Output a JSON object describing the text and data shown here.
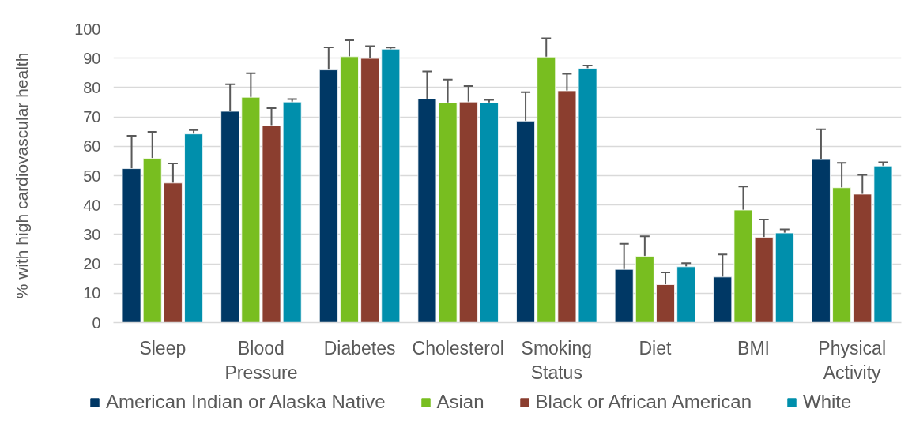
{
  "chart_data": {
    "type": "bar",
    "ylabel": "% with high cardiovascular health",
    "categories": [
      "Sleep",
      "Blood Pressure",
      "Diabetes",
      "Cholesterol",
      "Smoking Status",
      "Diet",
      "BMI",
      "Physical Activity"
    ],
    "series": [
      {
        "name": "American Indian or Alaska Native",
        "color": "#003865",
        "values": [
          52.4,
          71.9,
          86.0,
          76.1,
          68.6,
          18.1,
          15.5,
          55.5
        ],
        "errors": [
          11.2,
          9.2,
          7.7,
          9.4,
          9.8,
          8.7,
          7.7,
          10.3
        ]
      },
      {
        "name": "Asian",
        "color": "#78be20",
        "values": [
          55.9,
          76.7,
          90.5,
          74.8,
          90.4,
          22.6,
          38.3,
          45.9
        ],
        "errors": [
          9.0,
          8.2,
          5.6,
          7.9,
          6.4,
          6.8,
          8.0,
          8.5
        ]
      },
      {
        "name": "Black or African American",
        "color": "#8b3e2f",
        "values": [
          47.5,
          67.1,
          89.9,
          75.1,
          78.9,
          12.9,
          29.0,
          43.7
        ],
        "errors": [
          6.7,
          5.9,
          4.2,
          5.4,
          5.8,
          4.2,
          6.1,
          6.6
        ]
      },
      {
        "name": "White",
        "color": "#008fac",
        "values": [
          64.2,
          75.1,
          93.1,
          74.8,
          86.5,
          19.0,
          30.5,
          53.3
        ],
        "errors": [
          1.3,
          1.0,
          0.5,
          1.0,
          1.0,
          1.2,
          1.2,
          1.3
        ]
      }
    ],
    "ylim": [
      0,
      100
    ],
    "yticks": [
      0,
      10,
      20,
      30,
      40,
      50,
      60,
      70,
      80,
      90,
      100
    ],
    "grid": "y",
    "legend": "bottom"
  }
}
